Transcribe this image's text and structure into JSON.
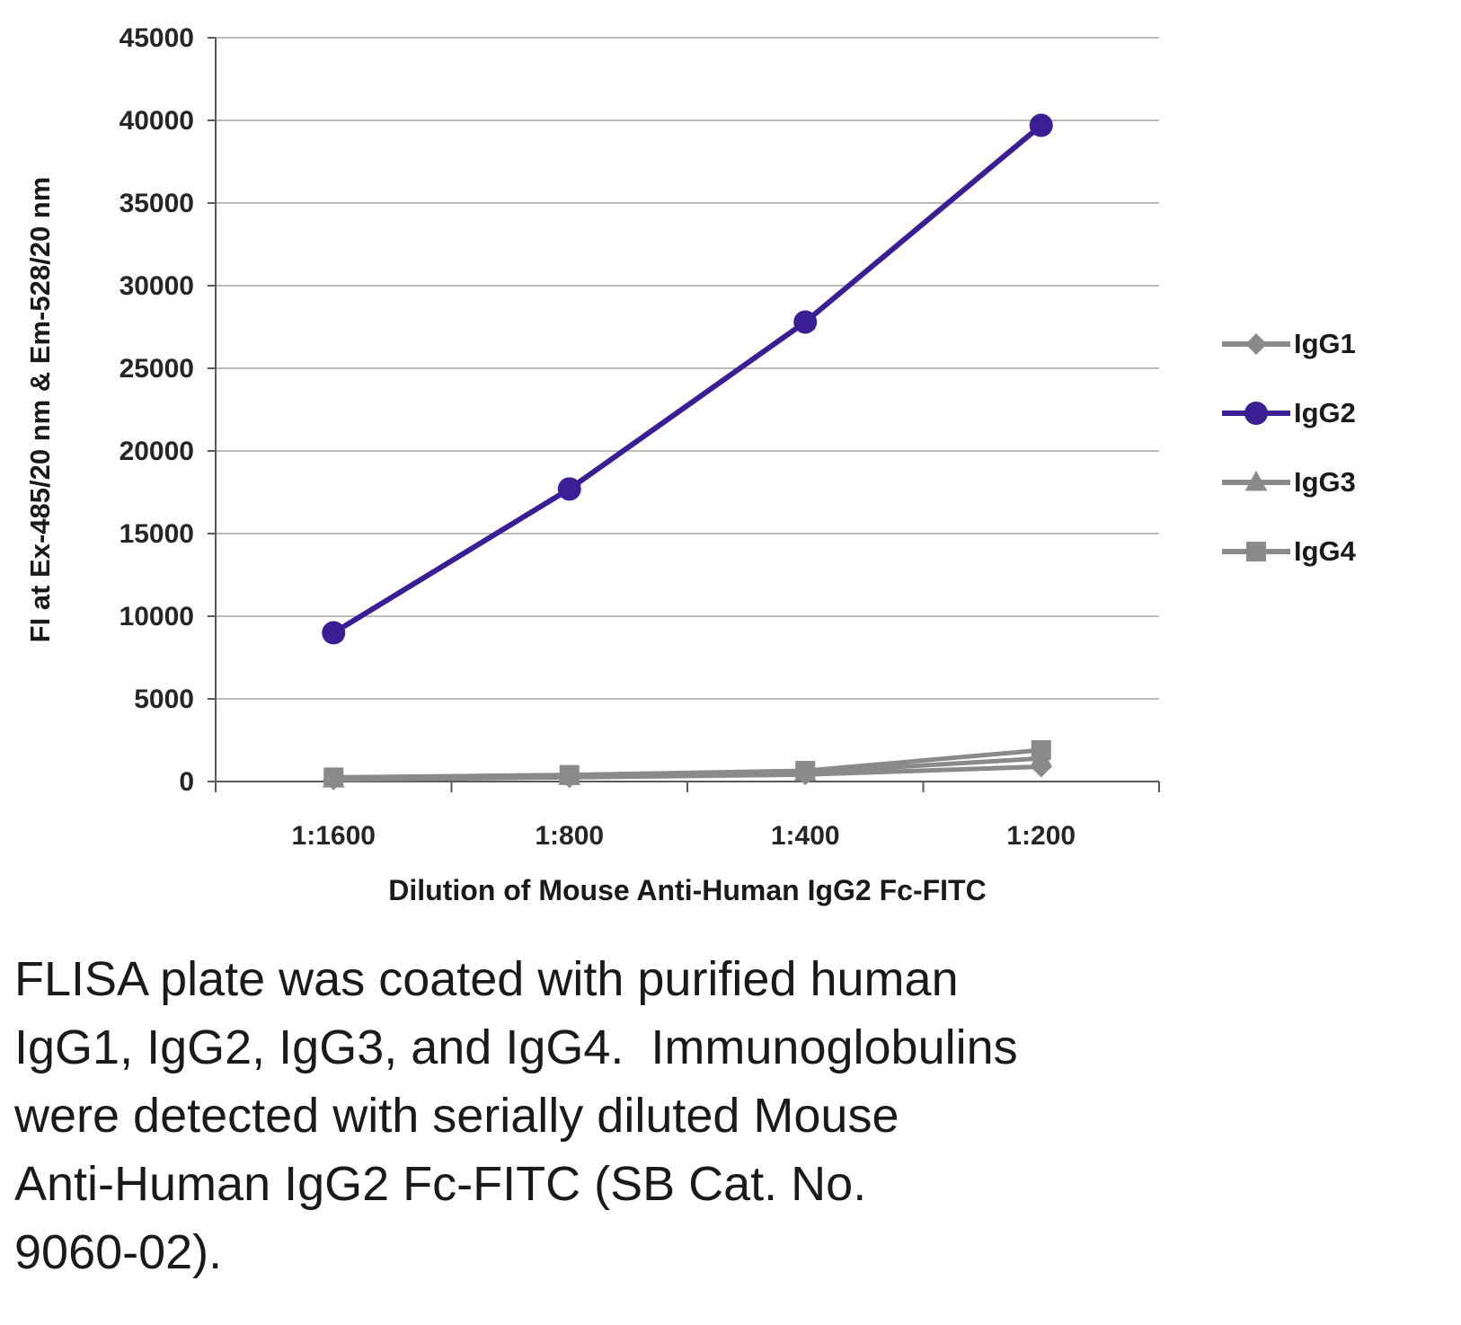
{
  "chart_data": {
    "type": "line",
    "title": "",
    "xlabel": "Dilution of Mouse Anti-Human IgG2 Fc-FITC",
    "ylabel": "FI at Ex-485/20 nm & Em-528/20 nm",
    "categories": [
      "1:1600",
      "1:800",
      "1:400",
      "1:200"
    ],
    "ylim": [
      0,
      45000
    ],
    "ytick_step": 5000,
    "grid": true,
    "legend_position": "right",
    "series": [
      {
        "name": "IgG1",
        "marker": "diamond",
        "color": "#8a8a8a",
        "values": [
          120,
          250,
          420,
          900
        ]
      },
      {
        "name": "IgG2",
        "marker": "circle",
        "color": "#3b1e93",
        "values": [
          9000,
          17700,
          27800,
          39700
        ]
      },
      {
        "name": "IgG3",
        "marker": "triangle",
        "color": "#8a8a8a",
        "values": [
          150,
          300,
          550,
          1400
        ]
      },
      {
        "name": "IgG4",
        "marker": "square",
        "color": "#8a8a8a",
        "values": [
          250,
          400,
          650,
          1900
        ]
      }
    ],
    "colors": {
      "gridline": "#a6a6a6",
      "axis": "#595959"
    }
  },
  "caption_lines": [
    "FLISA plate was coated with purified human",
    "IgG1, IgG2, IgG3, and IgG4.  Immunoglobulins",
    "were detected with serially diluted Mouse",
    "Anti-Human IgG2 Fc-FITC (SB Cat. No.",
    "9060-02)."
  ],
  "caption": "FLISA plate was coated with purified human IgG1, IgG2, IgG3, and IgG4.  Immunoglobulins were detected with serially diluted Mouse Anti-Human IgG2 Fc-FITC (SB Cat. No. 9060-02)."
}
